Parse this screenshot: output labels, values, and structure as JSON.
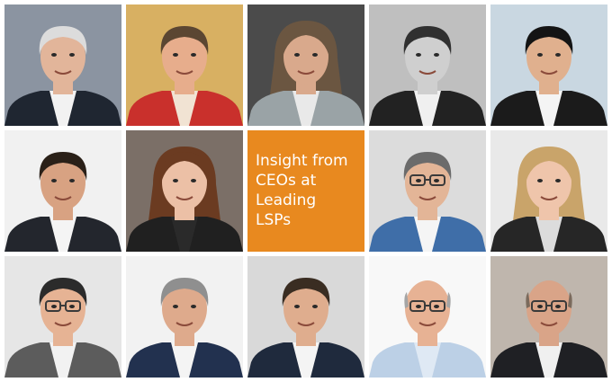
{
  "tile": {
    "lines": [
      "Insight from",
      "CEOs at",
      "Leading",
      "LSPs"
    ]
  }
}
